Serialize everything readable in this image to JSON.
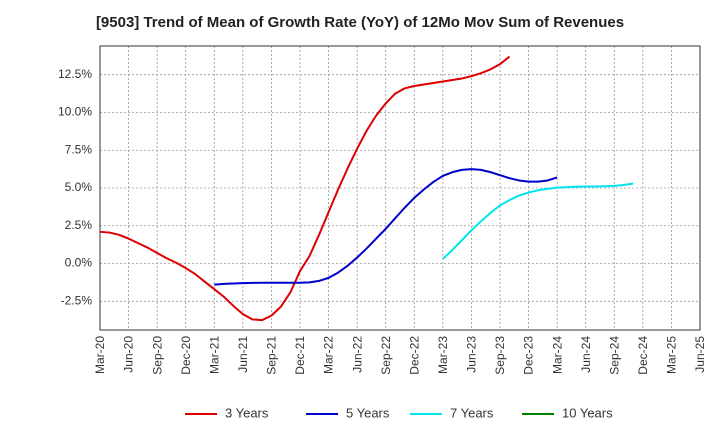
{
  "chart_data": {
    "type": "line",
    "title": "[9503]  Trend of Mean of Growth Rate (YoY) of 12Mo Mov Sum of Revenues",
    "xlabel": "",
    "ylabel": "",
    "x_ticks": [
      "Mar-20",
      "Jun-20",
      "Sep-20",
      "Dec-20",
      "Mar-21",
      "Jun-21",
      "Sep-21",
      "Dec-21",
      "Mar-22",
      "Jun-22",
      "Sep-22",
      "Dec-22",
      "Mar-23",
      "Jun-23",
      "Sep-23",
      "Dec-23",
      "Mar-24",
      "Jun-24",
      "Sep-24",
      "Dec-24",
      "Mar-25",
      "Jun-25"
    ],
    "y_ticks": [
      -2.5,
      0.0,
      2.5,
      5.0,
      7.5,
      10.0,
      12.5
    ],
    "y_tick_labels": [
      "-2.5%",
      "0.0%",
      "2.5%",
      "5.0%",
      "7.5%",
      "10.0%",
      "12.5%"
    ],
    "ylim": [
      -4.4,
      14.4
    ],
    "grid": true,
    "legend_position": "bottom",
    "series": [
      {
        "name": "3 Years",
        "color": "#dd0000",
        "x_index_start": 0,
        "values": [
          2.1,
          2.05,
          1.9,
          1.65,
          1.35,
          1.05,
          0.7,
          0.35,
          0.05,
          -0.3,
          -0.7,
          -1.2,
          -1.7,
          -2.2,
          -2.8,
          -3.35,
          -3.7,
          -3.75,
          -3.45,
          -2.85,
          -1.9,
          -0.5,
          0.5,
          1.9,
          3.4,
          4.9,
          6.3,
          7.6,
          8.8,
          9.8,
          10.6,
          11.25,
          11.6,
          11.75,
          11.85,
          11.95,
          12.05,
          12.15,
          12.25,
          12.4,
          12.6,
          12.85,
          13.2,
          13.7
        ]
      },
      {
        "name": "5 Years",
        "color": "#0000cc",
        "x_index_start": 12,
        "values": [
          -1.4,
          -1.35,
          -1.32,
          -1.3,
          -1.28,
          -1.27,
          -1.27,
          -1.27,
          -1.27,
          -1.27,
          -1.25,
          -1.15,
          -0.95,
          -0.6,
          -0.15,
          0.4,
          1.0,
          1.65,
          2.3,
          3.0,
          3.7,
          4.35,
          4.9,
          5.4,
          5.8,
          6.05,
          6.2,
          6.25,
          6.2,
          6.05,
          5.85,
          5.65,
          5.5,
          5.42,
          5.42,
          5.5,
          5.7
        ]
      },
      {
        "name": "7 Years",
        "color": "#00e5ee",
        "x_index_start": 36,
        "values": [
          0.3,
          0.9,
          1.55,
          2.2,
          2.8,
          3.35,
          3.85,
          4.2,
          4.5,
          4.7,
          4.85,
          4.95,
          5.02,
          5.06,
          5.08,
          5.1,
          5.1,
          5.12,
          5.14,
          5.2,
          5.3
        ]
      },
      {
        "name": "10 Years",
        "color": "#008000",
        "x_index_start": 0,
        "values": []
      }
    ]
  }
}
